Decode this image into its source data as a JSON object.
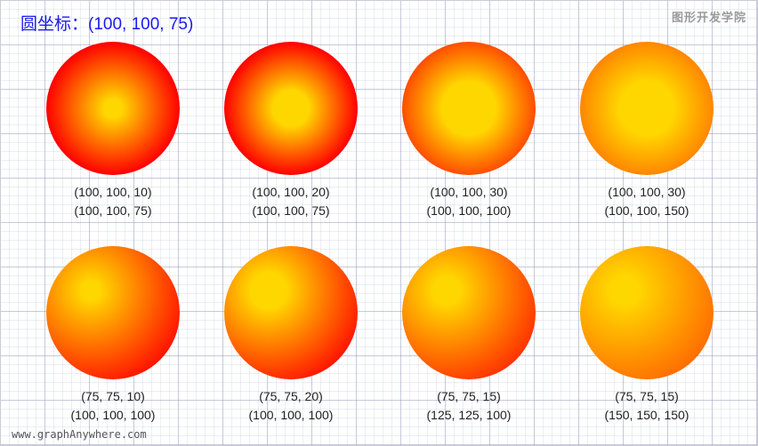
{
  "title": "圆坐标：(100, 100, 75)",
  "brand": "图形开发学院",
  "footer": "www.graphAnywhere.com",
  "colors": {
    "inner": "#ffd700",
    "outer": "#ff0000",
    "title": "#1a1aee"
  },
  "gradients": [
    {
      "inner": "(100, 100, 10)",
      "outer": "(100, 100, 75)"
    },
    {
      "inner": "(100, 100, 20)",
      "outer": "(100, 100, 75)"
    },
    {
      "inner": "(100, 100, 30)",
      "outer": "(100, 100, 100)"
    },
    {
      "inner": "(100, 100, 30)",
      "outer": "(100, 100, 150)"
    },
    {
      "inner": "(75, 75, 10)",
      "outer": "(100, 100, 100)"
    },
    {
      "inner": "(75, 75, 20)",
      "outer": "(100, 100, 100)"
    },
    {
      "inner": "(75, 75, 15)",
      "outer": "(125, 125, 100)"
    },
    {
      "inner": "(75, 75, 15)",
      "outer": "(150, 150, 150)"
    }
  ]
}
